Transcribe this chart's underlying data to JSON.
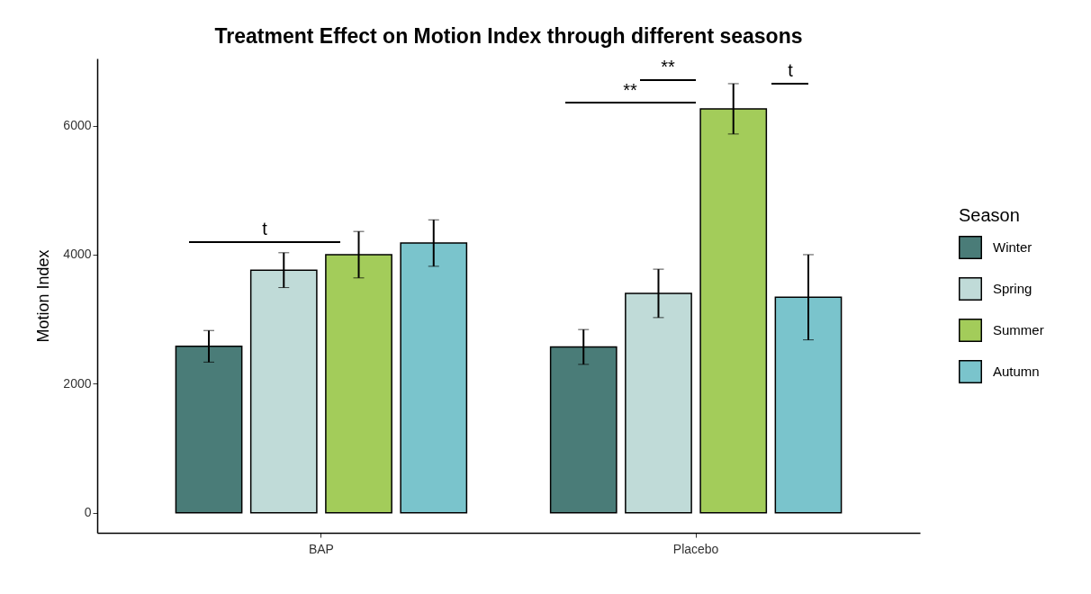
{
  "chart_data": {
    "type": "bar",
    "title": "Treatment Effect on Motion Index through different seasons",
    "ylabel": "Motion Index",
    "legend_title": "Season",
    "categories": [
      "BAP",
      "Placebo"
    ],
    "series": [
      {
        "name": "Winter",
        "color": "#4a7c78",
        "values": [
          2580,
          2570
        ],
        "errors": [
          245,
          270
        ]
      },
      {
        "name": "Spring",
        "color": "#c0dbd8",
        "values": [
          3760,
          3400
        ],
        "errors": [
          270,
          375
        ]
      },
      {
        "name": "Summer",
        "color": "#a3cc5a",
        "values": [
          4000,
          6260
        ],
        "errors": [
          360,
          390
        ]
      },
      {
        "name": "Autumn",
        "color": "#7ac4cc",
        "values": [
          4180,
          3340
        ],
        "errors": [
          360,
          660
        ]
      }
    ],
    "ylim": [
      -310,
      7040
    ],
    "yticks": [
      0,
      2000,
      4000,
      6000
    ],
    "grid": false,
    "legend": "right",
    "annotations": [
      "t",
      "**",
      "**",
      "t"
    ]
  }
}
